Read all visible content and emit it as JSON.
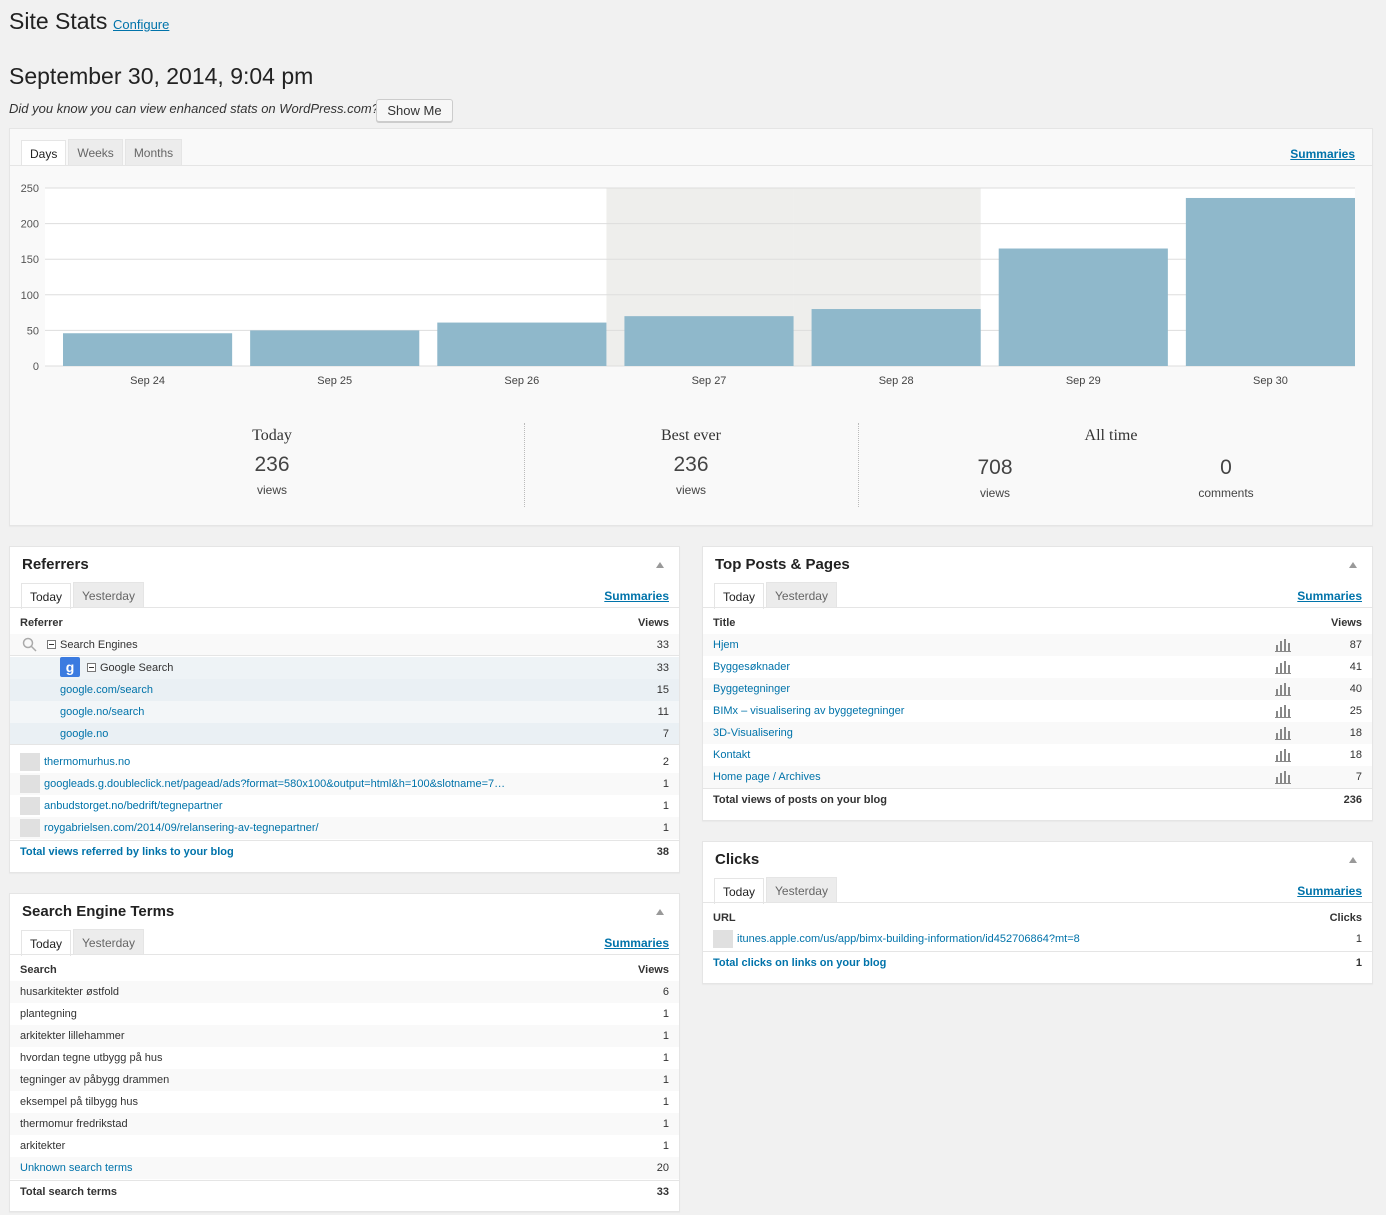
{
  "header": {
    "title": "Site Stats",
    "configure": "Configure",
    "datetime": "September 30, 2014, 9:04 pm",
    "promo": "Did you know you can view enhanced stats on WordPress.com?",
    "show_me": "Show Me"
  },
  "chart_panel": {
    "tabs": [
      "Days",
      "Weeks",
      "Months"
    ],
    "summaries": "Summaries"
  },
  "chart_data": {
    "type": "bar",
    "categories": [
      "Sep 24",
      "Sep 25",
      "Sep 26",
      "Sep 27",
      "Sep 28",
      "Sep 29",
      "Sep 30"
    ],
    "values": [
      46,
      50,
      61,
      70,
      80,
      165,
      236
    ],
    "ylim": [
      0,
      250
    ],
    "yticks": [
      0,
      50,
      100,
      150,
      200,
      250
    ],
    "weekend_highlight": [
      "Sep 27",
      "Sep 28"
    ],
    "bar_color": "#8fb8cb",
    "grid": true
  },
  "stats": {
    "today": {
      "heading": "Today",
      "value": "236",
      "label": "views"
    },
    "best": {
      "heading": "Best ever",
      "value": "236",
      "label": "views"
    },
    "alltime": {
      "heading": "All time",
      "views": "708",
      "views_label": "views",
      "comments": "0",
      "comments_label": "comments"
    }
  },
  "referrers": {
    "title": "Referrers",
    "tabs": [
      "Today",
      "Yesterday"
    ],
    "summaries": "Summaries",
    "col_left": "Referrer",
    "col_right": "Views",
    "search_engines": {
      "label": "Search Engines",
      "views": "33"
    },
    "google": {
      "label": "Google Search",
      "views": "33"
    },
    "google_rows": [
      {
        "label": "google.com/search",
        "views": "15"
      },
      {
        "label": "google.no/search",
        "views": "11"
      },
      {
        "label": "google.no",
        "views": "7"
      }
    ],
    "rows": [
      {
        "label": "thermomurhus.no",
        "views": "2"
      },
      {
        "label": "googleads.g.doubleclick.net/pagead/ads?format=580x100&output=html&h=100&slotname=7…",
        "views": "1"
      },
      {
        "label": "anbudstorget.no/bedrift/tegnepartner",
        "views": "1"
      },
      {
        "label": "roygabrielsen.com/2014/09/relansering-av-tegnepartner/",
        "views": "1"
      }
    ],
    "total_label": "Total views referred by links to your blog",
    "total": "38"
  },
  "top_posts": {
    "title": "Top Posts & Pages",
    "tabs": [
      "Today",
      "Yesterday"
    ],
    "summaries": "Summaries",
    "col_left": "Title",
    "col_right": "Views",
    "rows": [
      {
        "label": "Hjem",
        "views": "87"
      },
      {
        "label": "Byggesøknader",
        "views": "41"
      },
      {
        "label": "Byggetegninger",
        "views": "40"
      },
      {
        "label": "BIMx – visualisering av byggetegninger",
        "views": "25"
      },
      {
        "label": "3D-Visualisering",
        "views": "18"
      },
      {
        "label": "Kontakt",
        "views": "18"
      },
      {
        "label": "Home page / Archives",
        "views": "7"
      }
    ],
    "total_label": "Total views of posts on your blog",
    "total": "236"
  },
  "clicks": {
    "title": "Clicks",
    "tabs": [
      "Today",
      "Yesterday"
    ],
    "summaries": "Summaries",
    "col_left": "URL",
    "col_right": "Clicks",
    "rows": [
      {
        "label": "itunes.apple.com/us/app/bimx-building-information/id452706864?mt=8",
        "views": "1"
      }
    ],
    "total_label": "Total clicks on links on your blog",
    "total": "1"
  },
  "search_terms": {
    "title": "Search Engine Terms",
    "tabs": [
      "Today",
      "Yesterday"
    ],
    "summaries": "Summaries",
    "col_left": "Search",
    "col_right": "Views",
    "rows": [
      {
        "label": "husarkitekter østfold",
        "views": "6"
      },
      {
        "label": "plantegning",
        "views": "1"
      },
      {
        "label": "arkitekter lillehammer",
        "views": "1"
      },
      {
        "label": "hvordan tegne utbygg på hus",
        "views": "1"
      },
      {
        "label": "tegninger av påbygg drammen",
        "views": "1"
      },
      {
        "label": "eksempel på tilbygg hus",
        "views": "1"
      },
      {
        "label": "thermomur fredrikstad",
        "views": "1"
      },
      {
        "label": "arkitekter",
        "views": "1"
      }
    ],
    "unknown_label": "Unknown search terms",
    "unknown": "20",
    "total_label": "Total search terms",
    "total": "33"
  }
}
